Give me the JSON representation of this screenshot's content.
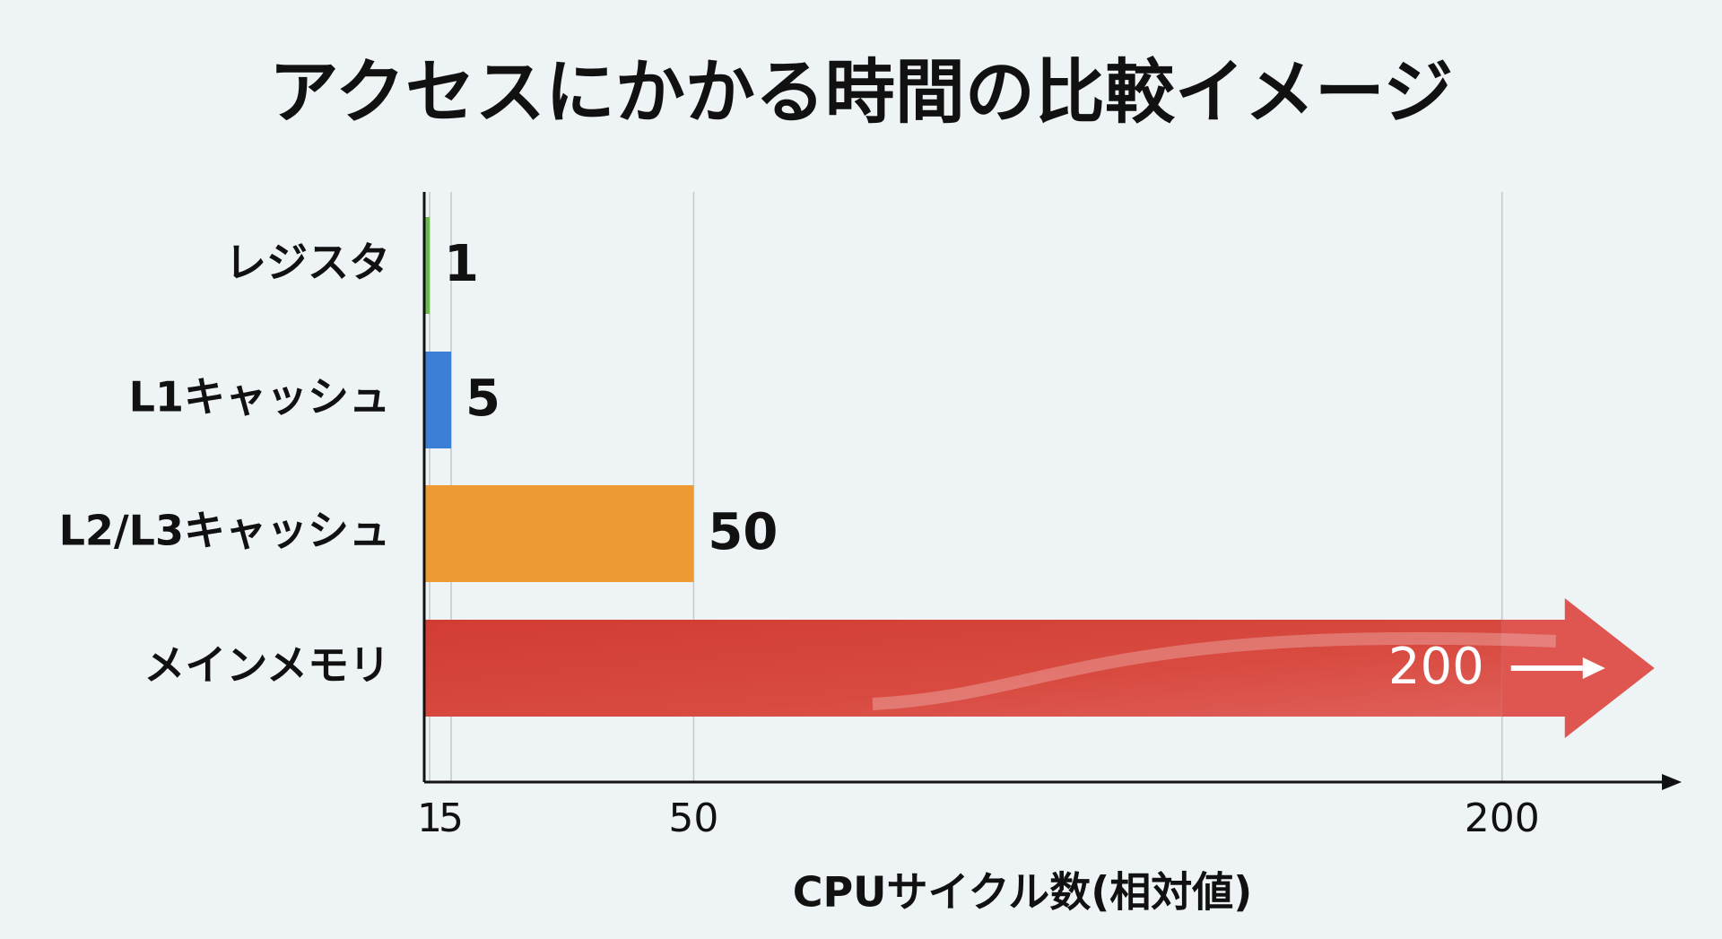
{
  "chart_data": {
    "type": "bar",
    "horizontal": true,
    "title": "アクセスにかかる時間の比較イメージ",
    "categories": [
      "レジスタ",
      "L1キャッシュ",
      "L2/L3キャッシュ",
      "メインメモリ"
    ],
    "values": [
      1,
      5,
      50,
      200
    ],
    "colors": [
      "#6cba4f",
      "#3b7fd6",
      "#ec9a34",
      "#d13c34"
    ],
    "xlabel": "CPUサイクル数(相対値)",
    "xlim": [
      0,
      230
    ],
    "xticks": [
      1,
      5,
      50,
      200
    ],
    "grid": true
  }
}
